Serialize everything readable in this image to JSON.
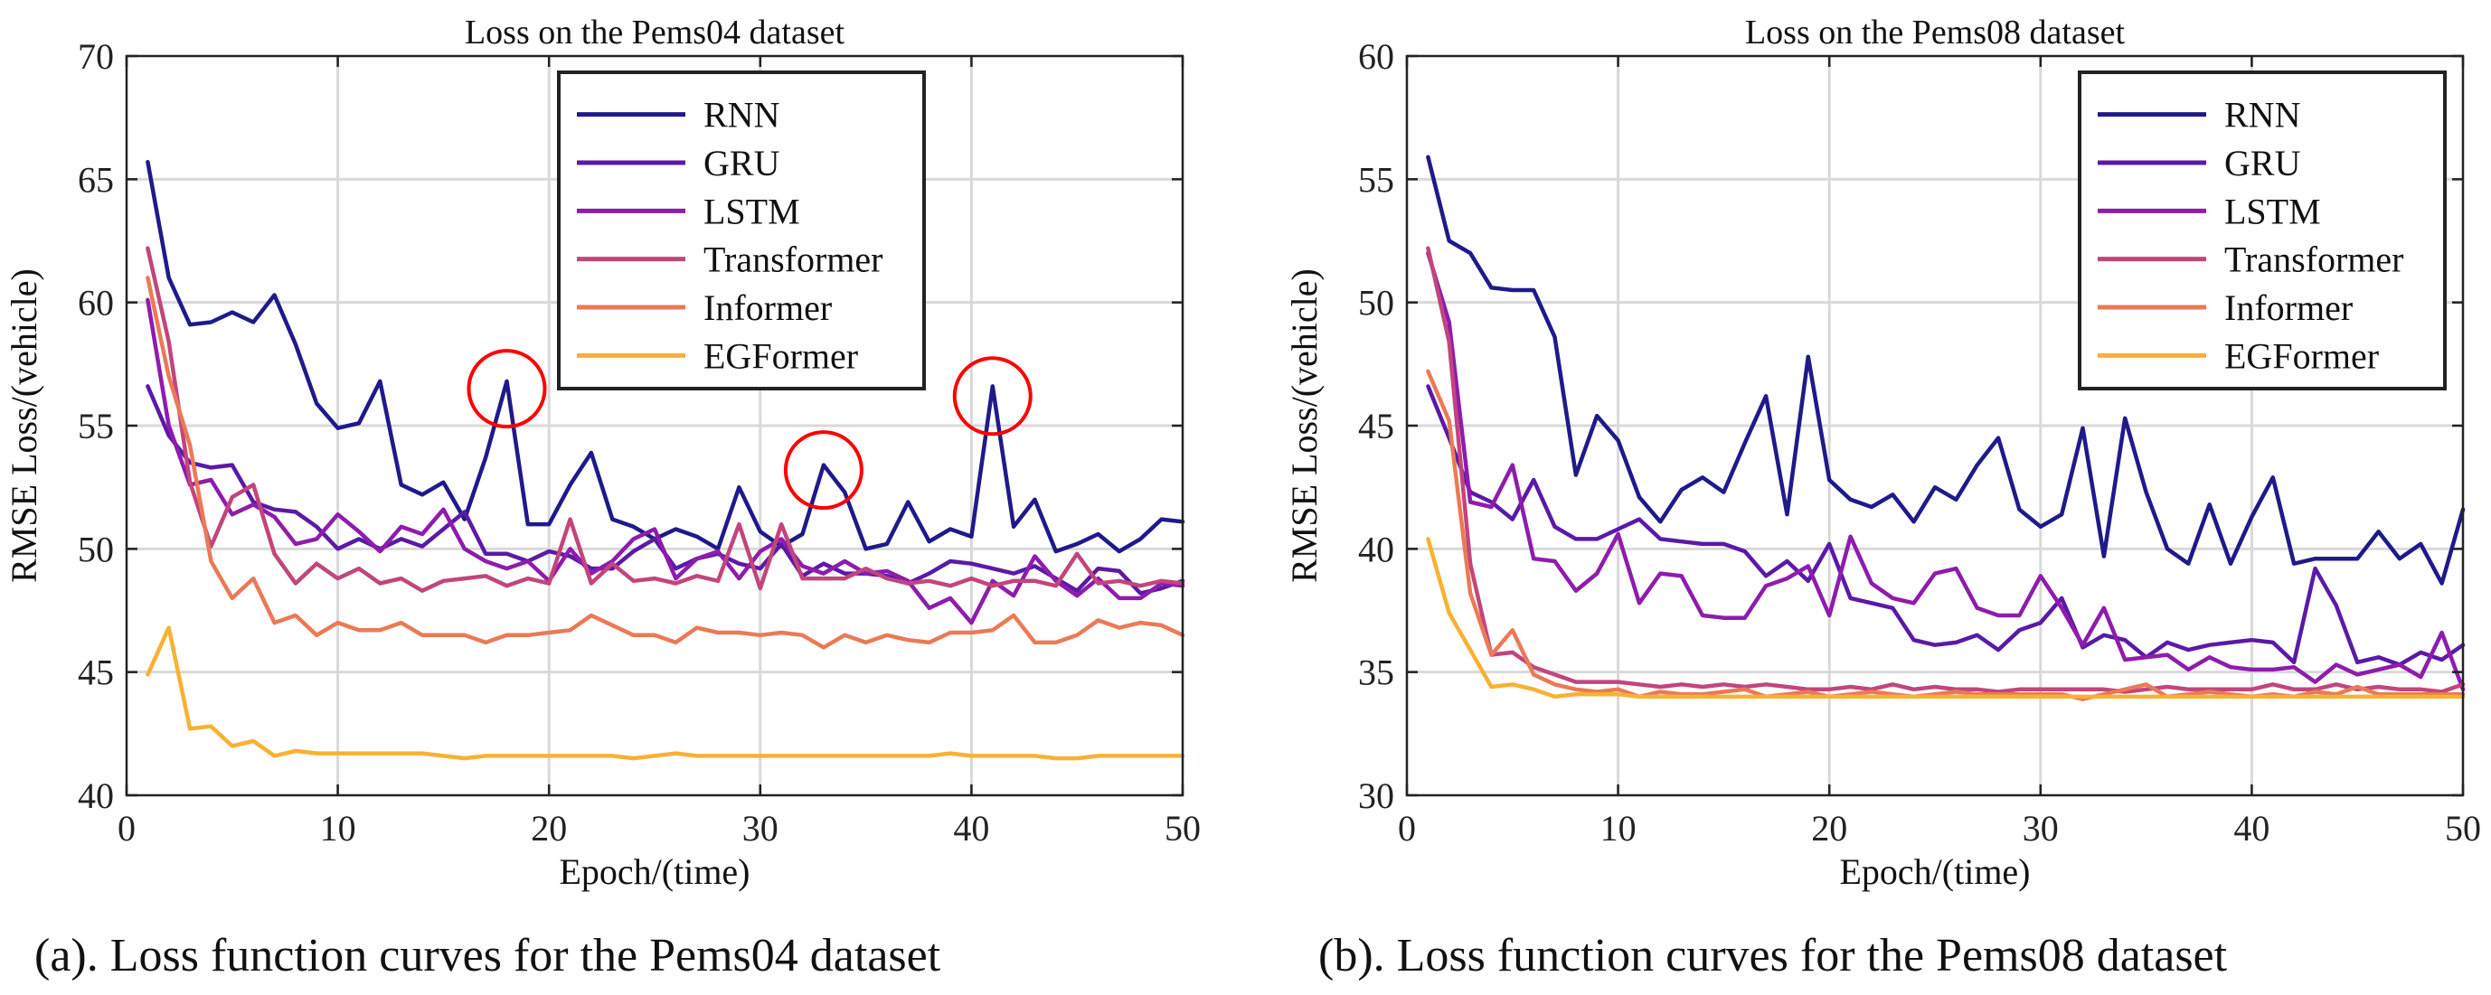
{
  "colors": {
    "RNN": "#1f1a8a",
    "GRU": "#5a1aa6",
    "LSTM": "#8e1cac",
    "Transformer": "#c2457d",
    "Informer": "#ea7a56",
    "EGFormer": "#f9b133",
    "highlight": "#ff0000"
  },
  "captions": {
    "a": "(a). Loss function curves for the Pems04 dataset",
    "b": "(b). Loss function curves for the Pems08 dataset"
  },
  "chart_data": [
    {
      "type": "line",
      "title": "Loss on the Pems04 dataset",
      "xlabel": "Epoch/(time)",
      "ylabel": "RMSE  Loss/(vehicle)",
      "xlim": [
        0,
        50
      ],
      "ylim": [
        40,
        70
      ],
      "xticks": [
        0,
        10,
        20,
        30,
        40,
        50
      ],
      "yticks": [
        40,
        45,
        50,
        55,
        60,
        65,
        70
      ],
      "grid": true,
      "legend_position": "top-right",
      "highlights": [
        {
          "x": 18,
          "y": 56.5
        },
        {
          "x": 33,
          "y": 53.2
        },
        {
          "x": 41,
          "y": 56.2
        }
      ],
      "x": [
        1,
        2,
        3,
        4,
        5,
        6,
        7,
        8,
        9,
        10,
        11,
        12,
        13,
        14,
        15,
        16,
        17,
        18,
        19,
        20,
        21,
        22,
        23,
        24,
        25,
        26,
        27,
        28,
        29,
        30,
        31,
        32,
        33,
        34,
        35,
        36,
        37,
        38,
        39,
        40,
        41,
        42,
        43,
        44,
        45,
        46,
        47,
        48,
        49,
        50
      ],
      "series": [
        {
          "name": "RNN",
          "values": [
            65.7,
            61.0,
            59.1,
            59.2,
            59.6,
            59.2,
            60.3,
            58.3,
            55.9,
            54.9,
            55.1,
            56.8,
            52.6,
            52.2,
            52.7,
            51.2,
            53.7,
            56.8,
            51.0,
            51.0,
            52.6,
            53.9,
            51.2,
            50.9,
            50.4,
            50.8,
            50.5,
            50.0,
            52.5,
            50.7,
            50.1,
            50.6,
            53.4,
            52.3,
            50.0,
            50.2,
            51.9,
            50.3,
            50.8,
            50.5,
            56.6,
            50.9,
            52.0,
            49.9,
            50.2,
            50.6,
            49.9,
            50.4,
            51.2,
            51.1
          ]
        },
        {
          "name": "GRU",
          "values": [
            56.6,
            54.6,
            53.5,
            53.3,
            53.4,
            51.9,
            51.6,
            51.5,
            50.9,
            50.0,
            50.4,
            50.0,
            50.4,
            50.1,
            50.8,
            51.5,
            49.8,
            49.8,
            49.5,
            49.9,
            49.7,
            49.2,
            49.2,
            49.9,
            50.4,
            49.2,
            49.6,
            49.8,
            49.4,
            49.2,
            50.2,
            48.9,
            49.4,
            49.0,
            49.0,
            48.9,
            48.6,
            49.0,
            49.5,
            49.4,
            49.2,
            49.0,
            49.3,
            48.8,
            48.3,
            49.2,
            49.1,
            48.2,
            48.4,
            48.7
          ]
        },
        {
          "name": "LSTM",
          "values": [
            60.1,
            55.0,
            52.6,
            52.8,
            51.4,
            51.8,
            51.3,
            50.2,
            50.4,
            51.4,
            50.7,
            49.9,
            50.9,
            50.6,
            51.6,
            50.0,
            49.5,
            49.2,
            49.5,
            48.7,
            50.0,
            49.0,
            49.5,
            50.4,
            50.8,
            48.8,
            49.6,
            49.9,
            48.8,
            49.9,
            50.4,
            49.3,
            49.0,
            49.5,
            49.0,
            49.1,
            48.7,
            47.6,
            48.0,
            47.0,
            48.7,
            48.1,
            49.7,
            48.7,
            48.1,
            48.8,
            48.0,
            48.0,
            48.6,
            48.5
          ]
        },
        {
          "name": "Transformer",
          "values": [
            62.2,
            58.4,
            52.7,
            50.1,
            52.1,
            52.6,
            49.8,
            48.6,
            49.4,
            48.8,
            49.2,
            48.6,
            48.8,
            48.3,
            48.7,
            48.8,
            48.9,
            48.5,
            48.8,
            48.6,
            51.2,
            48.6,
            49.4,
            48.7,
            48.8,
            48.6,
            48.9,
            48.7,
            51.0,
            48.4,
            51.0,
            48.8,
            48.8,
            48.8,
            49.2,
            48.8,
            48.6,
            48.7,
            48.5,
            48.8,
            48.5,
            48.7,
            48.7,
            48.5,
            49.8,
            48.6,
            48.7,
            48.5,
            48.7,
            48.6
          ]
        },
        {
          "name": "Informer",
          "values": [
            61.0,
            57.0,
            54.2,
            49.5,
            48.0,
            48.8,
            47.0,
            47.3,
            46.5,
            47.0,
            46.7,
            46.7,
            47.0,
            46.5,
            46.5,
            46.5,
            46.2,
            46.5,
            46.5,
            46.6,
            46.7,
            47.3,
            46.9,
            46.5,
            46.5,
            46.2,
            46.8,
            46.6,
            46.6,
            46.5,
            46.6,
            46.5,
            46.0,
            46.5,
            46.2,
            46.5,
            46.3,
            46.2,
            46.6,
            46.6,
            46.7,
            47.3,
            46.2,
            46.2,
            46.5,
            47.1,
            46.8,
            47.0,
            46.9,
            46.5
          ]
        },
        {
          "name": "EGFormer",
          "values": [
            44.9,
            46.8,
            42.7,
            42.8,
            42.0,
            42.2,
            41.6,
            41.8,
            41.7,
            41.7,
            41.7,
            41.7,
            41.7,
            41.7,
            41.6,
            41.5,
            41.6,
            41.6,
            41.6,
            41.6,
            41.6,
            41.6,
            41.6,
            41.5,
            41.6,
            41.7,
            41.6,
            41.6,
            41.6,
            41.6,
            41.6,
            41.6,
            41.6,
            41.6,
            41.6,
            41.6,
            41.6,
            41.6,
            41.7,
            41.6,
            41.6,
            41.6,
            41.6,
            41.5,
            41.5,
            41.6,
            41.6,
            41.6,
            41.6,
            41.6
          ]
        }
      ]
    },
    {
      "type": "line",
      "title": "Loss on the Pems08 dataset",
      "xlabel": "Epoch/(time)",
      "ylabel": "RMSE  Loss/(vehicle)",
      "xlim": [
        0,
        50
      ],
      "ylim": [
        30,
        60
      ],
      "xticks": [
        0,
        10,
        20,
        30,
        40,
        50
      ],
      "yticks": [
        30,
        35,
        40,
        45,
        50,
        55,
        60
      ],
      "grid": true,
      "legend_position": "top-right",
      "highlights": [],
      "x": [
        1,
        2,
        3,
        4,
        5,
        6,
        7,
        8,
        9,
        10,
        11,
        12,
        13,
        14,
        15,
        16,
        17,
        18,
        19,
        20,
        21,
        22,
        23,
        24,
        25,
        26,
        27,
        28,
        29,
        30,
        31,
        32,
        33,
        34,
        35,
        36,
        37,
        38,
        39,
        40,
        41,
        42,
        43,
        44,
        45,
        46,
        47,
        48,
        49,
        50
      ],
      "series": [
        {
          "name": "RNN",
          "values": [
            55.9,
            52.5,
            52.0,
            50.6,
            50.5,
            50.5,
            48.6,
            43.0,
            45.4,
            44.4,
            42.1,
            41.1,
            42.4,
            42.9,
            42.3,
            44.3,
            46.2,
            41.4,
            47.8,
            42.8,
            42.0,
            41.7,
            42.2,
            41.1,
            42.5,
            42.0,
            43.4,
            44.5,
            41.6,
            40.9,
            41.4,
            44.9,
            39.7,
            45.3,
            42.3,
            40.0,
            39.4,
            41.8,
            39.4,
            41.3,
            42.9,
            39.4,
            39.6,
            39.6,
            39.6,
            40.7,
            39.6,
            40.2,
            38.6,
            41.6
          ]
        },
        {
          "name": "GRU",
          "values": [
            46.6,
            44.5,
            42.3,
            41.9,
            41.2,
            42.8,
            40.9,
            40.4,
            40.4,
            40.8,
            41.2,
            40.4,
            40.3,
            40.2,
            40.2,
            39.9,
            38.9,
            39.5,
            38.7,
            40.2,
            38.0,
            37.8,
            37.6,
            36.3,
            36.1,
            36.2,
            36.5,
            35.9,
            36.7,
            37.0,
            38.0,
            36.0,
            36.5,
            36.3,
            35.6,
            36.2,
            35.9,
            36.1,
            36.2,
            36.3,
            36.2,
            35.4,
            39.2,
            37.7,
            35.4,
            35.6,
            35.3,
            35.8,
            35.5,
            36.1
          ]
        },
        {
          "name": "LSTM",
          "values": [
            52.0,
            49.2,
            41.9,
            41.7,
            43.4,
            39.6,
            39.5,
            38.3,
            39.0,
            40.6,
            37.8,
            39.0,
            38.9,
            37.3,
            37.2,
            37.2,
            38.5,
            38.8,
            39.3,
            37.3,
            40.5,
            38.6,
            38.0,
            37.8,
            39.0,
            39.2,
            37.6,
            37.3,
            37.3,
            38.9,
            37.6,
            36.1,
            37.6,
            35.5,
            35.6,
            35.7,
            35.1,
            35.6,
            35.2,
            35.1,
            35.1,
            35.2,
            34.6,
            35.3,
            34.9,
            35.1,
            35.3,
            34.8,
            36.6,
            34.3
          ]
        },
        {
          "name": "Transformer",
          "values": [
            52.2,
            48.4,
            39.4,
            35.7,
            35.8,
            35.2,
            34.9,
            34.6,
            34.6,
            34.6,
            34.5,
            34.4,
            34.5,
            34.4,
            34.5,
            34.4,
            34.5,
            34.4,
            34.3,
            34.3,
            34.4,
            34.3,
            34.5,
            34.3,
            34.4,
            34.3,
            34.3,
            34.2,
            34.3,
            34.3,
            34.3,
            34.3,
            34.3,
            34.2,
            34.3,
            34.4,
            34.3,
            34.3,
            34.3,
            34.3,
            34.5,
            34.3,
            34.3,
            34.5,
            34.3,
            34.4,
            34.3,
            34.3,
            34.2,
            34.5
          ]
        },
        {
          "name": "Informer",
          "values": [
            47.2,
            45.2,
            38.2,
            35.7,
            36.7,
            34.9,
            34.5,
            34.3,
            34.2,
            34.3,
            34.0,
            34.2,
            34.1,
            34.1,
            34.2,
            34.3,
            34.0,
            34.1,
            34.2,
            34.0,
            34.1,
            34.2,
            34.1,
            34.0,
            34.1,
            34.2,
            34.1,
            34.1,
            34.1,
            34.1,
            34.1,
            33.9,
            34.1,
            34.3,
            34.5,
            34.0,
            34.1,
            34.2,
            34.1,
            34.0,
            34.1,
            34.0,
            34.2,
            34.1,
            34.4,
            34.1,
            34.1,
            34.1,
            34.1,
            34.1
          ]
        },
        {
          "name": "EGFormer",
          "values": [
            40.4,
            37.4,
            35.9,
            34.4,
            34.5,
            34.3,
            34.0,
            34.1,
            34.1,
            34.1,
            34.0,
            34.0,
            34.0,
            34.0,
            34.0,
            34.0,
            34.0,
            34.0,
            34.0,
            34.0,
            34.0,
            34.0,
            34.0,
            34.0,
            34.0,
            34.0,
            34.0,
            34.0,
            34.0,
            34.0,
            34.0,
            34.0,
            34.0,
            34.0,
            34.0,
            34.0,
            34.0,
            34.0,
            34.0,
            34.0,
            34.0,
            34.0,
            34.0,
            34.0,
            34.0,
            34.0,
            34.0,
            34.0,
            34.0,
            34.0
          ]
        }
      ]
    }
  ]
}
